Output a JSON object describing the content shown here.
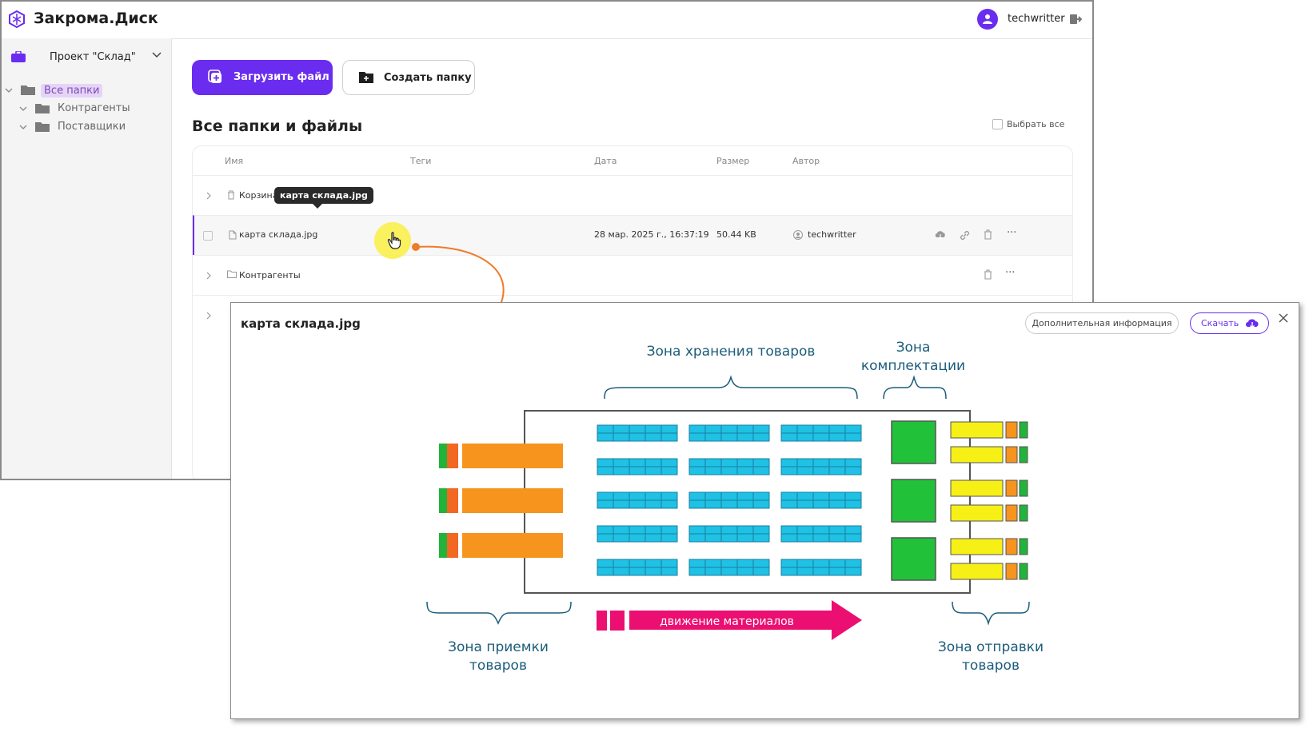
{
  "app": {
    "title": "Закрома.Диск",
    "user": "techwritter",
    "brand_color": "#6a2df0"
  },
  "sidebar": {
    "project": "Проект \"Склад\"",
    "tree": [
      {
        "label": "Все папки"
      },
      {
        "label": "Контрагенты"
      },
      {
        "label": "Поставщики"
      }
    ]
  },
  "toolbar": {
    "upload_label": "Загрузить файл",
    "create_folder_label": "Создать папку"
  },
  "main": {
    "section_title": "Все папки и файлы",
    "select_all_label": "Выбрать все",
    "columns": [
      "Имя",
      "Теги",
      "Дата",
      "Размер",
      "Автор"
    ],
    "rows": [
      {
        "name": "Корзина",
        "date": "",
        "size": "",
        "author": ""
      },
      {
        "name": "карта склада.jpg",
        "date": "28 мар. 2025 г., 16:37:19",
        "size": "50.44 KB",
        "author": "techwritter"
      },
      {
        "name": "Контрагенты",
        "date": "",
        "size": "",
        "author": ""
      }
    ],
    "tooltip": "карта склада.jpg"
  },
  "preview": {
    "title": "карта склада.jpg",
    "info_button": "Дополнительная информация",
    "download_button": "Скачать",
    "map": {
      "zone_storage": "Зона хранения товаров",
      "zone_picking_line1": "Зона",
      "zone_picking_line2": "комплектации",
      "zone_receiving_line1": "Зона приемки",
      "zone_receiving_line2": "товаров",
      "zone_shipping_line1": "Зона отправки",
      "zone_shipping_line2": "товаров",
      "flow_label": "движение материалов"
    }
  }
}
